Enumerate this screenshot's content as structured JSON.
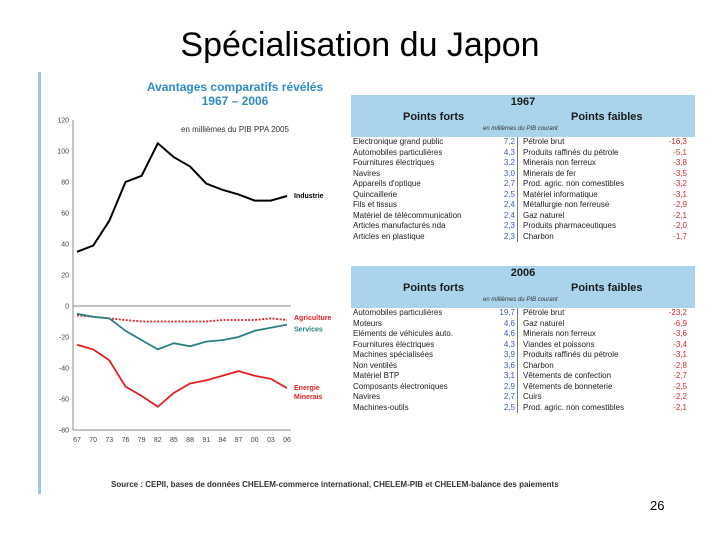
{
  "slide": {
    "title": "Spécialisation du Japon",
    "page_number": "26",
    "source": "Source : CEPII, bases de données CHELEM-commerce international, CHELEM-PIB et CHELEM-balance des paiements"
  },
  "chart_data": {
    "type": "line",
    "title": "Avantages comparatifs révélés",
    "subtitle": "1967 – 2006",
    "unit": "en millièmes du PIB PPA 2005",
    "ylim": [
      -80,
      120
    ],
    "yticks": [
      "120",
      "100",
      "80",
      "60",
      "40",
      "20",
      "0",
      "-20",
      "-40",
      "-60",
      "-80"
    ],
    "x": [
      "67",
      "70",
      "73",
      "76",
      "79",
      "82",
      "85",
      "88",
      "91",
      "94",
      "97",
      "00",
      "03",
      "06"
    ],
    "series": [
      {
        "name": "Industrie",
        "color": "#000000",
        "values": [
          35,
          39,
          55,
          80,
          84,
          105,
          96,
          90,
          79,
          75,
          72,
          68,
          68,
          71
        ]
      },
      {
        "name": "Agriculture",
        "color": "#e02020",
        "values": [
          -6,
          -7,
          -8,
          -9,
          -10,
          -10,
          -10,
          -10,
          -10,
          -9,
          -9,
          -9,
          -8,
          -9
        ]
      },
      {
        "name": "Services",
        "color": "#2a8080",
        "values": [
          -5,
          -7,
          -8,
          -16,
          -22,
          -28,
          -24,
          -26,
          -23,
          -22,
          -20,
          -16,
          -14,
          -12
        ]
      },
      {
        "name": "Energie Minerais",
        "color": "#e02020",
        "values": [
          -25,
          -28,
          -35,
          -52,
          -58,
          -65,
          -56,
          -50,
          -48,
          -45,
          -42,
          -45,
          -47,
          -53
        ]
      }
    ],
    "grid": false,
    "legend": "inline-right"
  },
  "tables": [
    {
      "year": "1967",
      "strengths_label": "Points forts",
      "weaknesses_label": "Points faibles",
      "unit": "en millièmes du PIB courant",
      "rows": [
        {
          "s": "Electronique grand public",
          "sv": "7,2",
          "w": "Pétrole brut",
          "wv": "-16,3"
        },
        {
          "s": "Automobiles particulières",
          "sv": "4,3",
          "w": "Produits raffinés du pétrole",
          "wv": "-5,1"
        },
        {
          "s": "Fournitures électriques",
          "sv": "3,2",
          "w": "Minerais non ferreux",
          "wv": "-3,8"
        },
        {
          "s": "Navires",
          "sv": "3,0",
          "w": "Minerais de fer",
          "wv": "-3,5"
        },
        {
          "s": "Appareils d'optique",
          "sv": "2,7",
          "w": "Prod. agric. non comestibles",
          "wv": "-3,2"
        },
        {
          "s": "Quincaillerie",
          "sv": "2,5",
          "w": "Matériel informatique",
          "wv": "-3,1"
        },
        {
          "s": "Fils et tissus",
          "sv": "2,4",
          "w": "Métallurgie non ferreuse",
          "wv": "-2,9"
        },
        {
          "s": "Matériel de télécommunication",
          "sv": "2,4",
          "w": "Gaz naturel",
          "wv": "-2,1"
        },
        {
          "s": "Articles manufacturés nda",
          "sv": "2,3",
          "w": "Produits pharmaceutiques",
          "wv": "-2,0"
        },
        {
          "s": "Articles en plastique",
          "sv": "2,3",
          "w": "Charbon",
          "wv": "-1,7"
        }
      ]
    },
    {
      "year": "2006",
      "strengths_label": "Points forts",
      "weaknesses_label": "Points faibles",
      "unit": "en millièmes du PIB courant",
      "rows": [
        {
          "s": "Automobiles particulières",
          "sv": "19,7",
          "w": "Pétrole brut",
          "wv": "-23,2"
        },
        {
          "s": "Moteurs",
          "sv": "4,6",
          "w": "Gaz naturel",
          "wv": "-6,9"
        },
        {
          "s": "Eléments de véhicules auto.",
          "sv": "4,6",
          "w": "Minerais non ferreux",
          "wv": "-3,6"
        },
        {
          "s": "Fournitures électriques",
          "sv": "4,3",
          "w": "Viandes et poissons",
          "wv": "-3,4"
        },
        {
          "s": "Machines spécialisées",
          "sv": "3,9",
          "w": "Produits raffinés du pétrole",
          "wv": "-3,1"
        },
        {
          "s": "Non ventilés",
          "sv": "3,6",
          "w": "Charbon",
          "wv": "-2,8"
        },
        {
          "s": "Matériel BTP",
          "sv": "3,1",
          "w": "Vêtements de confection",
          "wv": "-2,7"
        },
        {
          "s": "Composants électroniques",
          "sv": "2,9",
          "w": "Vêtements de bonneterie",
          "wv": "-2,5"
        },
        {
          "s": "Navires",
          "sv": "2,7",
          "w": "Cuirs",
          "wv": "-2,2"
        },
        {
          "s": "Machines-outils",
          "sv": "2,5",
          "w": "Prod. agric. non comestibles",
          "wv": "-2,1"
        }
      ]
    }
  ]
}
